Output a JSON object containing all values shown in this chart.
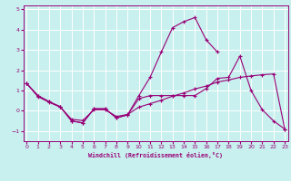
{
  "title": "",
  "xlabel": "Windchill (Refroidissement éolien,°C)",
  "ylabel": "",
  "background_color": "#c8f0ee",
  "grid_color": "#ffffff",
  "line_color": "#990077",
  "x_ticks": [
    0,
    1,
    2,
    3,
    4,
    5,
    6,
    7,
    8,
    9,
    10,
    11,
    12,
    13,
    14,
    15,
    16,
    17,
    18,
    19,
    20,
    21,
    22,
    23
  ],
  "y_ticks": [
    -1,
    0,
    1,
    2,
    3,
    4,
    5
  ],
  "ylim": [
    -1.5,
    5.2
  ],
  "xlim": [
    -0.3,
    23.3
  ],
  "series1_x": [
    0,
    1,
    2,
    3,
    4,
    5,
    6,
    7,
    8,
    9,
    10,
    11,
    12,
    13,
    14,
    15,
    16,
    17
  ],
  "series1_y": [
    1.35,
    0.75,
    0.45,
    0.2,
    -0.5,
    -0.6,
    0.1,
    0.1,
    -0.35,
    -0.2,
    0.75,
    1.65,
    2.9,
    4.1,
    4.4,
    4.6,
    3.5,
    2.9
  ],
  "series2_x": [
    0,
    1,
    2,
    3,
    4,
    5,
    6,
    7,
    8,
    9,
    10,
    11,
    12,
    13,
    14,
    15,
    16,
    17,
    18,
    19,
    20,
    21,
    22,
    23
  ],
  "series2_y": [
    1.35,
    0.75,
    0.45,
    0.2,
    -0.5,
    -0.6,
    0.1,
    0.1,
    -0.35,
    -0.2,
    0.6,
    0.75,
    0.75,
    0.75,
    0.75,
    0.75,
    1.1,
    1.6,
    1.65,
    2.7,
    1.0,
    0.05,
    -0.5,
    -0.9
  ],
  "series3_x": [
    0,
    1,
    2,
    3,
    4,
    5,
    6,
    7,
    8,
    9,
    10,
    11,
    12,
    13,
    14,
    15,
    16,
    17,
    18,
    19,
    20,
    21,
    22,
    23
  ],
  "series3_y": [
    1.35,
    0.7,
    0.42,
    0.18,
    -0.42,
    -0.48,
    0.05,
    0.05,
    -0.28,
    -0.18,
    0.18,
    0.35,
    0.52,
    0.72,
    0.88,
    1.08,
    1.22,
    1.42,
    1.52,
    1.65,
    1.72,
    1.78,
    1.82,
    -0.9
  ]
}
